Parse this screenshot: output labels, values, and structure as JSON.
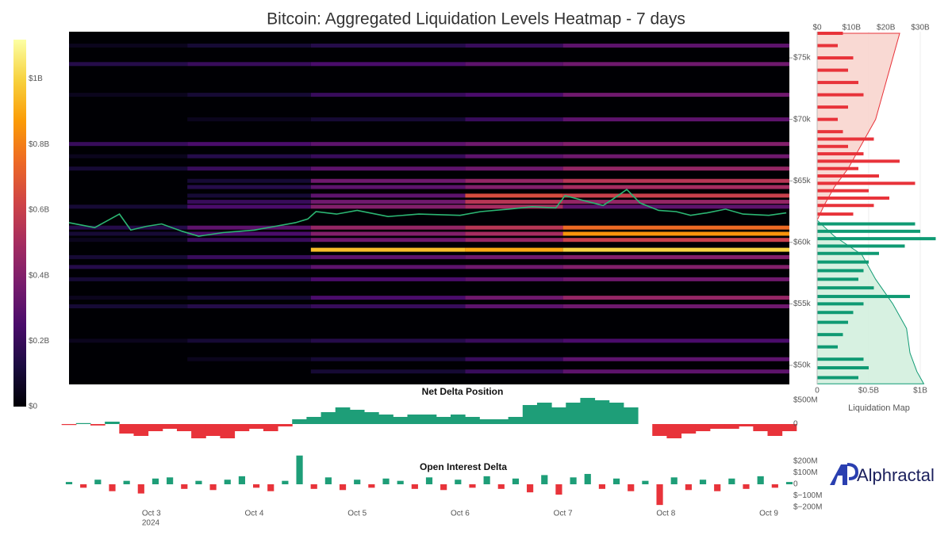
{
  "chart_data": {
    "type": "heatmap",
    "title": "Bitcoin: Aggregated Liquidation Levels Heatmap - 7 days",
    "xlim": [
      2.2,
      9.2
    ],
    "xticks": [
      {
        "value": 3,
        "label": "Oct 3"
      },
      {
        "value": 4,
        "label": "Oct 4"
      },
      {
        "value": 5,
        "label": "Oct 5"
      },
      {
        "value": 6,
        "label": "Oct 6"
      },
      {
        "value": 7,
        "label": "Oct 7"
      },
      {
        "value": 8,
        "label": "Oct 8"
      },
      {
        "value": 9,
        "label": "Oct 9"
      }
    ],
    "x_year": "2024",
    "ylim": [
      48450,
      77130
    ],
    "yticks": [
      {
        "value": 50000,
        "label": "$50k"
      },
      {
        "value": 55000,
        "label": "$55k"
      },
      {
        "value": 60000,
        "label": "$60k"
      },
      {
        "value": 65000,
        "label": "$65k"
      },
      {
        "value": 70000,
        "label": "$70k"
      },
      {
        "value": 75000,
        "label": "$75k"
      }
    ],
    "colorscale": [
      "#000004",
      "#1b0c41",
      "#4a0c6b",
      "#781c6d",
      "#a52c60",
      "#cf4446",
      "#ed6925",
      "#fb9b06",
      "#f7d13d",
      "#fcffa4"
    ],
    "zlim": [
      0,
      1.12
    ],
    "zticks": [
      {
        "value": 0,
        "label": "$0"
      },
      {
        "value": 0.2,
        "label": "$0.2B"
      },
      {
        "value": 0.4,
        "label": "$0.4B"
      },
      {
        "value": 0.6,
        "label": "$0.6B"
      },
      {
        "value": 0.8,
        "label": "$0.8B"
      },
      {
        "value": 1,
        "label": "$1B"
      }
    ],
    "xbins": [
      2.2,
      3.35,
      4.55,
      6.05,
      7.0,
      9.2
    ],
    "levels": [
      {
        "price": 76000,
        "values": [
          0.05,
          0.1,
          0.15,
          0.2,
          0.3
        ]
      },
      {
        "price": 74500,
        "values": [
          0.15,
          0.2,
          0.25,
          0.3,
          0.35
        ]
      },
      {
        "price": 72000,
        "values": [
          0.05,
          0.1,
          0.2,
          0.25,
          0.35
        ]
      },
      {
        "price": 70000,
        "values": [
          0,
          0.05,
          0.1,
          0.2,
          0.3
        ]
      },
      {
        "price": 68000,
        "values": [
          0.2,
          0.25,
          0.3,
          0.35,
          0.4
        ]
      },
      {
        "price": 67000,
        "values": [
          0.05,
          0.15,
          0.2,
          0.3,
          0.35
        ]
      },
      {
        "price": 66000,
        "values": [
          0.1,
          0.2,
          0.3,
          0.35,
          0.45
        ]
      },
      {
        "price": 65000,
        "values": [
          0,
          0.1,
          0.35,
          0.45,
          0.55
        ]
      },
      {
        "price": 64500,
        "values": [
          0,
          0.15,
          0.3,
          0.4,
          0.5
        ]
      },
      {
        "price": 63800,
        "values": [
          0,
          0.1,
          0.3,
          0.65,
          0.6
        ]
      },
      {
        "price": 63300,
        "values": [
          0,
          0.2,
          0.35,
          0.55,
          0.45
        ]
      },
      {
        "price": 62900,
        "values": [
          0.1,
          0.25,
          0.4,
          0.5,
          0.3
        ]
      },
      {
        "price": 61200,
        "values": [
          0.15,
          0.3,
          0.45,
          0.55,
          0.75
        ]
      },
      {
        "price": 60700,
        "values": [
          0.1,
          0.25,
          0.4,
          0.5,
          0.85
        ]
      },
      {
        "price": 60200,
        "values": [
          0.05,
          0.2,
          0.35,
          0.45,
          0.6
        ]
      },
      {
        "price": 59400,
        "values": [
          0,
          0,
          0.95,
          0.9,
          1.0
        ]
      },
      {
        "price": 58800,
        "values": [
          0.1,
          0.2,
          0.3,
          0.35,
          0.4
        ]
      },
      {
        "price": 58000,
        "values": [
          0.15,
          0.2,
          0.3,
          0.35,
          0.4
        ]
      },
      {
        "price": 57000,
        "values": [
          0.1,
          0.15,
          0.25,
          0.3,
          0.35
        ]
      },
      {
        "price": 55500,
        "values": [
          0.05,
          0.1,
          0.25,
          0.35,
          0.45
        ]
      },
      {
        "price": 54800,
        "values": [
          0.1,
          0.15,
          0.2,
          0.3,
          0.35
        ]
      },
      {
        "price": 52000,
        "values": [
          0.05,
          0.1,
          0.15,
          0.2,
          0.25
        ]
      },
      {
        "price": 50500,
        "values": [
          0,
          0.05,
          0.1,
          0.2,
          0.3
        ]
      },
      {
        "price": 49500,
        "values": [
          0,
          0,
          0.1,
          0.2,
          0.3
        ]
      }
    ],
    "price": {
      "color": "#2bb673",
      "x": [
        2.2,
        2.45,
        2.69,
        2.8,
        2.95,
        3.1,
        3.3,
        3.46,
        3.7,
        4.0,
        4.2,
        4.4,
        4.52,
        4.6,
        4.8,
        5.0,
        5.3,
        5.6,
        6.0,
        6.2,
        6.47,
        6.7,
        6.93,
        7.02,
        7.2,
        7.39,
        7.5,
        7.62,
        7.75,
        7.93,
        8.1,
        8.24,
        8.4,
        8.58,
        8.75,
        9.0,
        9.17
      ],
      "values": [
        61600,
        61200,
        62300,
        61000,
        61300,
        61500,
        60900,
        60500,
        60800,
        61000,
        61300,
        61600,
        61900,
        62500,
        62300,
        62600,
        62100,
        62300,
        62200,
        62500,
        62700,
        62900,
        62800,
        63800,
        63400,
        63000,
        63600,
        64300,
        63200,
        62600,
        62500,
        62200,
        62400,
        62700,
        62300,
        62200,
        62400
      ]
    },
    "liquidation_map": {
      "label": "Liquidation Map",
      "xlim": [
        0,
        1.154
      ],
      "xticks": [
        {
          "value": 0,
          "label": "0"
        },
        {
          "value": 0.5,
          "label": "$0.5B"
        },
        {
          "value": 1,
          "label": "$1B"
        }
      ],
      "x2lim": [
        0,
        34.6
      ],
      "x2ticks": [
        {
          "value": 0,
          "label": "$0"
        },
        {
          "value": 10,
          "label": "$10B"
        },
        {
          "value": 20,
          "label": "$20B"
        },
        {
          "value": 30,
          "label": "$30B"
        }
      ],
      "shorts": {
        "color": "#e8333a",
        "area_color": "#f8cfc8",
        "prices": [
          62300,
          63000,
          63600,
          64200,
          64800,
          65400,
          66000,
          66600,
          67200,
          67800,
          68400,
          69000,
          70000,
          71000,
          72000,
          73000,
          74000,
          75000,
          76000,
          77000
        ],
        "values": [
          0.35,
          0.55,
          0.7,
          0.5,
          0.95,
          0.6,
          0.4,
          0.8,
          0.45,
          0.3,
          0.55,
          0.25,
          0.2,
          0.3,
          0.45,
          0.4,
          0.3,
          0.35,
          0.2,
          0.25
        ],
        "cum_prices": [
          61800,
          63000,
          64500,
          66000,
          68000,
          70000,
          72000,
          74000,
          77000
        ],
        "cum_values": [
          0,
          2,
          5,
          9,
          13,
          17,
          19,
          21,
          24
        ]
      },
      "longs": {
        "color": "#0f9a73",
        "area_color": "#cdeed9",
        "prices": [
          61500,
          60900,
          60300,
          59700,
          59100,
          58400,
          57700,
          57000,
          56300,
          55600,
          55000,
          54300,
          53500,
          52500,
          51500,
          50500,
          49800,
          49000
        ],
        "values": [
          0.95,
          1.0,
          1.15,
          0.85,
          0.6,
          0.5,
          0.45,
          0.4,
          0.55,
          0.9,
          0.45,
          0.35,
          0.3,
          0.25,
          0.2,
          0.45,
          0.5,
          0.4
        ],
        "cum_prices": [
          61800,
          60500,
          59000,
          57000,
          55000,
          53000,
          51000,
          49500,
          48500
        ],
        "cum_values": [
          0,
          5,
          13,
          17,
          22,
          26,
          27,
          29,
          31
        ]
      }
    },
    "x": [
      2.2,
      2.34,
      2.48,
      2.62,
      2.76,
      2.9,
      3.04,
      3.18,
      3.32,
      3.46,
      3.6,
      3.74,
      3.88,
      4.02,
      4.16,
      4.3,
      4.44,
      4.58,
      4.72,
      4.86,
      5.0,
      5.14,
      5.28,
      5.42,
      5.56,
      5.7,
      5.84,
      5.98,
      6.12,
      6.26,
      6.4,
      6.54,
      6.68,
      6.82,
      6.96,
      7.1,
      7.24,
      7.38,
      7.52,
      7.66,
      7.8,
      7.94,
      8.08,
      8.22,
      8.36,
      8.5,
      8.64,
      8.78,
      8.92,
      9.06,
      9.2
    ],
    "net_delta": {
      "title": "Net Delta Position",
      "pos_color": "#1e9e78",
      "neg_color": "#e8333a",
      "ylim": [
        -450,
        667
      ],
      "yticks": [
        {
          "value": 500,
          "label": "$500M"
        },
        0
      ],
      "values": [
        -20,
        20,
        -30,
        50,
        -200,
        -250,
        -150,
        -100,
        -150,
        -300,
        -250,
        -300,
        -150,
        -100,
        -150,
        -50,
        100,
        150,
        250,
        350,
        300,
        250,
        200,
        150,
        200,
        200,
        150,
        200,
        150,
        100,
        100,
        150,
        400,
        450,
        350,
        450,
        550,
        500,
        450,
        350,
        0,
        -250,
        -300,
        -200,
        -150,
        -100,
        -100,
        -50,
        -150,
        -250,
        -150
      ]
    },
    "oi_delta": {
      "title": "Open Interest Delta",
      "pos_color": "#1e9e78",
      "neg_color": "#e8333a",
      "ylim": [
        -248,
        262
      ],
      "yticks": [
        {
          "value": 200,
          "label": "$200M"
        },
        {
          "value": 100,
          "label": "$100M"
        },
        0,
        {
          "value": -100,
          "label": "$−100M"
        },
        {
          "value": -200,
          "label": "$−200M"
        }
      ],
      "values": [
        20,
        -30,
        40,
        -60,
        30,
        -80,
        50,
        60,
        -40,
        30,
        -50,
        40,
        70,
        -30,
        -60,
        30,
        250,
        -40,
        60,
        -50,
        40,
        -30,
        50,
        30,
        -40,
        60,
        -50,
        40,
        -30,
        70,
        -40,
        50,
        -70,
        80,
        -90,
        60,
        90,
        -40,
        50,
        -60,
        30,
        -180,
        60,
        -50,
        40,
        -60,
        50,
        -40,
        70,
        -30,
        20
      ]
    },
    "brand": "Alphractal"
  }
}
